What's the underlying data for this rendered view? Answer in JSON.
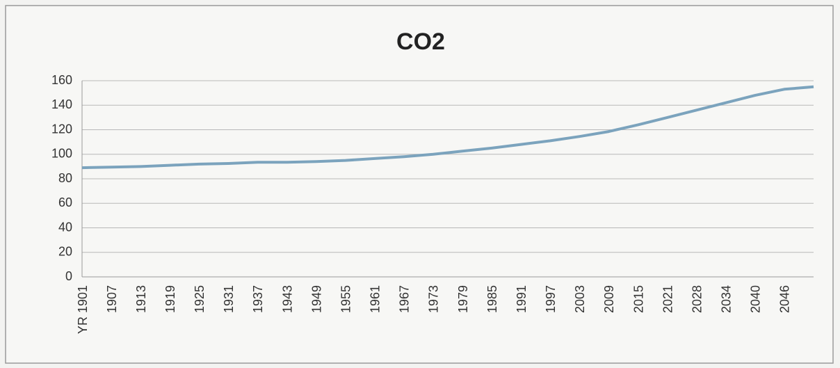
{
  "chart_data": {
    "type": "line",
    "title": "CO2",
    "categories": [
      "YR 1901",
      "1907",
      "1913",
      "1919",
      "1925",
      "1931",
      "1937",
      "1943",
      "1949",
      "1955",
      "1961",
      "1967",
      "1973",
      "1979",
      "1985",
      "1991",
      "1997",
      "2003",
      "2009",
      "2015",
      "2021",
      "2028",
      "2034",
      "2040",
      "2046",
      null
    ],
    "values": [
      89,
      89.5,
      90,
      91,
      92,
      92.5,
      93.5,
      93.5,
      94,
      95,
      96.5,
      98,
      100,
      102.5,
      105,
      108,
      111,
      114.5,
      118.5,
      124,
      130,
      136,
      142,
      148,
      153,
      155
    ],
    "color": "#7ba3bd",
    "ylim": [
      0,
      160
    ],
    "yticks": [
      0,
      20,
      40,
      60,
      80,
      100,
      120,
      140,
      160
    ],
    "grid": true
  }
}
